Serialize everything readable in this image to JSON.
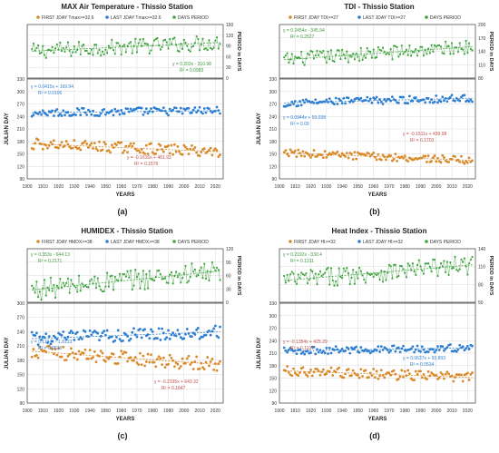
{
  "figure": {
    "panels": [
      {
        "id": "a",
        "caption": "(a)",
        "title": "MAX Air Temperature - Thissio Station"
      },
      {
        "id": "b",
        "caption": "(b)",
        "title": "TDI - Thissio Station"
      },
      {
        "id": "c",
        "caption": "(c)",
        "title": "HUMIDEX - Thissio Station"
      },
      {
        "id": "d",
        "caption": "(d)",
        "title": "Heat Index - Thissio Station"
      }
    ]
  },
  "colors": {
    "first": "#d98a2b",
    "last": "#2f7fd1",
    "period": "#3fa33f",
    "first_text": "#c0504d",
    "last_text": "#2f7fd1",
    "period_text": "#3f9a3f",
    "grid": "#d9d9d9",
    "frame": "#404040"
  },
  "chart_data": [
    {
      "type": "scatter",
      "panel": "a",
      "title": "MAX Air Temperature - Thissio Station",
      "caption": "(a)",
      "legend": [
        "FIRST JDAY Tmax>=32.6",
        "LAST JDAY Tmax>=32.6",
        "DAYS PERIOD"
      ],
      "xlabel": "YEARS",
      "ylabel_bottom": "JULIAN DAY",
      "ylabel_top": "PERIOD in DAYS",
      "x_range": [
        1900,
        2025
      ],
      "x_ticks": [
        1900,
        1910,
        1920,
        1930,
        1940,
        1950,
        1960,
        1970,
        1980,
        1990,
        2000,
        2010,
        2020
      ],
      "top": {
        "ylim": [
          0,
          150
        ],
        "ticks": [
          0,
          30,
          60,
          90,
          120,
          150
        ],
        "trend": [
          0.203,
          -310.98
        ],
        "fit_label": "y = 0.203x - 310.98",
        "r2_label": "R² = 0.0983",
        "annotation_pos": "bottom-right"
      },
      "bottom": {
        "ylim": [
          90,
          330
        ],
        "ticks": [
          90,
          120,
          150,
          180,
          210,
          240,
          270,
          300,
          330
        ]
      },
      "last": {
        "trend": [
          0.0415,
          169.94
        ],
        "fit_label": "y = 0.0415x + 169.94",
        "r2_label": "R² = 0.0106",
        "annotation_pos": "upper-left"
      },
      "first": {
        "trend": [
          -0.1616,
          481.93
        ],
        "fit_label": "y = -0.1616x + 481.93",
        "r2_label": "R² = 0.1576",
        "annotation_pos": "lower-center"
      }
    },
    {
      "type": "scatter",
      "panel": "b",
      "title": "TDI - Thissio Station",
      "caption": "(b)",
      "legend": [
        "FIRST JDAY TDI>=27",
        "LAST JDAY TDI>=27",
        "DAYS PERIOD"
      ],
      "xlabel": "YEARS",
      "ylabel_bottom": "JULIAN DAY",
      "ylabel_top": "PERIOD in DAYS",
      "x_range": [
        1900,
        2025
      ],
      "x_ticks": [
        1900,
        1910,
        1920,
        1930,
        1940,
        1950,
        1960,
        1970,
        1980,
        1990,
        2000,
        2010,
        2020
      ],
      "top": {
        "ylim": [
          80,
          200
        ],
        "ticks": [
          80,
          110,
          140,
          170,
          200
        ],
        "trend": [
          0.2454,
          -345.94
        ],
        "fit_label": "y = 0.2454x - 345.94",
        "r2_label": "R² = 0.2527",
        "annotation_pos": "top-left"
      },
      "bottom": {
        "ylim": [
          90,
          330
        ],
        "ticks": [
          90,
          120,
          150,
          180,
          210,
          240,
          270,
          300,
          330
        ]
      },
      "last": {
        "trend": [
          0.0944,
          93.038
        ],
        "fit_label": "y = 0.0944x + 93.038",
        "r2_label": "R² = 0.09",
        "annotation_pos": "lower-left"
      },
      "first": {
        "trend": [
          -0.1511,
          439.98
        ],
        "fit_label": "y = -0.1511x + 439.98",
        "r2_label": "R² = 0.1703",
        "annotation_pos": "middle-right"
      }
    },
    {
      "type": "scatter",
      "panel": "c",
      "title": "HUMIDEX - Thissio Station",
      "caption": "(c)",
      "legend": [
        "FIRST JDAY HMDX>=38",
        "LAST JDAY HMDX>=38",
        "DAYS PERIOD"
      ],
      "xlabel": "YEARS",
      "ylabel_bottom": "JULIAN DAY",
      "ylabel_top": "PERIOD in DAYS",
      "x_range": [
        1900,
        2025
      ],
      "x_ticks": [
        1900,
        1910,
        1920,
        1930,
        1940,
        1950,
        1960,
        1970,
        1980,
        1990,
        2000,
        2010,
        2020
      ],
      "top": {
        "ylim": [
          0,
          120
        ],
        "ticks": [
          0,
          30,
          60,
          90,
          120
        ],
        "trend": [
          0.353,
          -644.13
        ],
        "fit_label": "y = 0.353x - 644.13",
        "r2_label": "R² = 0.2171",
        "annotation_pos": "top-left"
      },
      "bottom": {
        "ylim": [
          90,
          300
        ],
        "ticks": [
          90,
          120,
          150,
          180,
          210,
          240,
          270,
          300
        ]
      },
      "last": {
        "trend": [
          0.1194,
          -1.8133
        ],
        "fit_label": "y = 0.1194x - 1.8133",
        "r2_label": "R² = 0.0616",
        "annotation_pos": "lower-left"
      },
      "first": {
        "trend": [
          -0.2335,
          643.32
        ],
        "fit_label": "y = -0.2335x + 643.32",
        "r2_label": "R² = 0.1847",
        "annotation_pos": "lower-right"
      }
    },
    {
      "type": "scatter",
      "panel": "d",
      "title": "Heat Index - Thissio Station",
      "caption": "(d)",
      "legend": [
        "FIRST JDAY HI>=32",
        "LAST JDAY HI>=32",
        "DAYS PERIOD"
      ],
      "xlabel": "YEARS",
      "ylabel_bottom": "JULIAN DAY",
      "ylabel_top": "PERIOD in DAYS",
      "x_range": [
        1900,
        2025
      ],
      "x_ticks": [
        1900,
        1910,
        1920,
        1930,
        1940,
        1950,
        1960,
        1970,
        1980,
        1990,
        2000,
        2010,
        2020
      ],
      "top": {
        "ylim": [
          50,
          140
        ],
        "ticks": [
          50,
          80,
          110,
          140
        ],
        "trend": [
          0.2192,
          -330.4
        ],
        "fit_label": "y = 0.2192x - 330.4",
        "r2_label": "R² = 0.1311",
        "annotation_pos": "top-left"
      },
      "bottom": {
        "ylim": [
          90,
          330
        ],
        "ticks": [
          90,
          120,
          150,
          180,
          210,
          240,
          270,
          300,
          330
        ]
      },
      "last": {
        "trend": [
          0.0637,
          93.893
        ],
        "fit_label": "y = 0.0637x + 93.893",
        "r2_label": "R² = 0.0534",
        "annotation_pos": "middle-right"
      },
      "first": {
        "trend": [
          -0.1354,
          425.29
        ],
        "fit_label": "y = -0.1354x + 425.29",
        "r2_label": "R² = 0.1107",
        "annotation_pos": "lower-left"
      }
    }
  ]
}
